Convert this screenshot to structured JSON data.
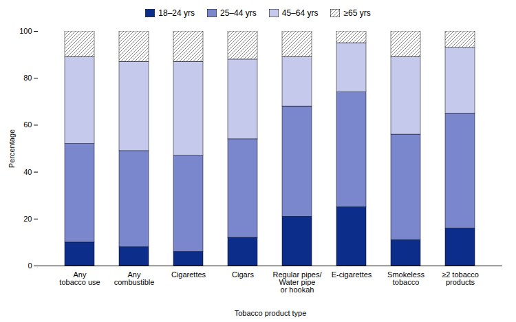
{
  "chart_data": {
    "type": "bar",
    "stacked": true,
    "categories": [
      "Any\ntobacco use",
      "Any\ncombustible",
      "Cigarettes",
      "Cigars",
      "Regular pipes/\nWater pipe\nor hookah",
      "E-cigarettes",
      "Smokeless\ntobacco",
      "≥2 tobacco\nproducts"
    ],
    "series": [
      {
        "name": "18–24 yrs",
        "color": "#0d2d8a",
        "values": [
          10,
          8,
          6,
          12,
          21,
          25,
          11,
          16
        ]
      },
      {
        "name": "25–44 yrs",
        "color": "#7b87cc",
        "values": [
          42,
          41,
          41,
          42,
          47,
          49,
          45,
          49
        ]
      },
      {
        "name": "45–64 yrs",
        "color": "#c5caec",
        "values": [
          37,
          38,
          40,
          34,
          21,
          21,
          33,
          28
        ]
      },
      {
        "name": "≥65 yrs",
        "color": "#888888",
        "values": [
          11,
          13,
          13,
          12,
          11,
          5,
          11,
          7
        ]
      }
    ],
    "ylim": [
      0,
      100
    ],
    "yticks": [
      0,
      20,
      40,
      60,
      80,
      100
    ],
    "xlabel": "Tobacco product type",
    "ylabel": "Percentage",
    "grid": false,
    "legend": "top"
  }
}
